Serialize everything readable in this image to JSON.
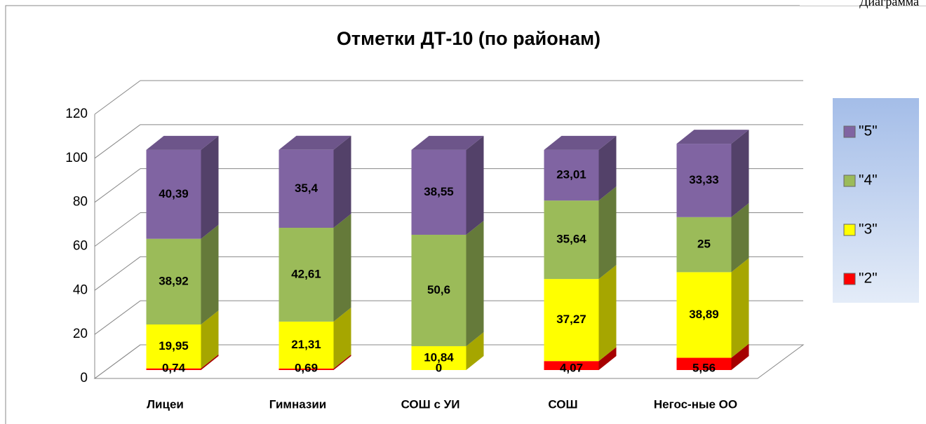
{
  "caption": "Диаграмма",
  "chart_data": {
    "type": "bar3d_stacked",
    "title": "Отметки  ДТ-10 (по районам)",
    "categories": [
      "Лицеи",
      "Гимназии",
      "СОШ с УИ",
      "СОШ",
      "Негос-ные ОО"
    ],
    "series": [
      {
        "name": "\"2\"",
        "color": "#ff0000",
        "values": [
          0.74,
          0.69,
          0,
          4.07,
          5.56
        ],
        "value_labels": [
          "0,74",
          "0,69",
          "0",
          "4,07",
          "5,56"
        ]
      },
      {
        "name": "\"3\"",
        "color": "#ffff00",
        "values": [
          19.95,
          21.31,
          10.84,
          37.27,
          38.89
        ],
        "value_labels": [
          "19,95",
          "21,31",
          "10,84",
          "37,27",
          "38,89"
        ]
      },
      {
        "name": "\"4\"",
        "color": "#9bbb59",
        "values": [
          38.92,
          42.61,
          50.6,
          35.64,
          25
        ],
        "value_labels": [
          "38,92",
          "42,61",
          "50,6",
          "35,64",
          "25"
        ]
      },
      {
        "name": "\"5\"",
        "color": "#8064a2",
        "values": [
          40.39,
          35.4,
          38.55,
          23.01,
          33.33
        ],
        "value_labels": [
          "40,39",
          "35,4",
          "38,55",
          "23,01",
          "33,33"
        ]
      }
    ],
    "ylim": [
      0,
      120
    ],
    "yticks": [
      0,
      20,
      40,
      60,
      80,
      100,
      120
    ],
    "grid": true,
    "legend": "right"
  }
}
